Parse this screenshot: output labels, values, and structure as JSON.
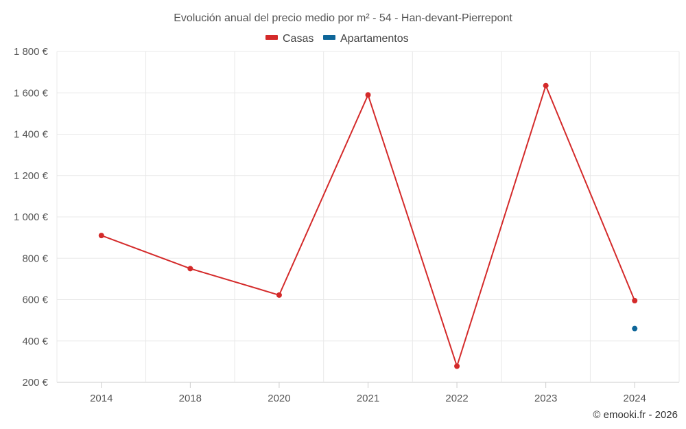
{
  "chart_data": {
    "type": "line",
    "title": "Evolución anual del precio medio por m² - 54 - Han-devant-Pierrepont",
    "categories": [
      "2014",
      "2018",
      "2020",
      "2021",
      "2022",
      "2023",
      "2024"
    ],
    "ylim": [
      200,
      1800
    ],
    "ytick_values": [
      200,
      400,
      600,
      800,
      1000,
      1200,
      1400,
      1600,
      1800
    ],
    "ytick_labels": [
      "200 €",
      "400 €",
      "600 €",
      "800 €",
      "1 000 €",
      "1 200 €",
      "1 400 €",
      "1 600 €",
      "1 800 €"
    ],
    "grid": true,
    "legend_position": "top-center",
    "series": [
      {
        "name": "Casas",
        "color": "#d42a2a",
        "values": [
          910,
          750,
          622,
          1590,
          278,
          1635,
          595
        ]
      },
      {
        "name": "Apartamentos",
        "color": "#0e6699",
        "values": [
          null,
          null,
          null,
          null,
          null,
          null,
          460
        ]
      }
    ]
  },
  "credit": "© emooki.fr - 2026"
}
